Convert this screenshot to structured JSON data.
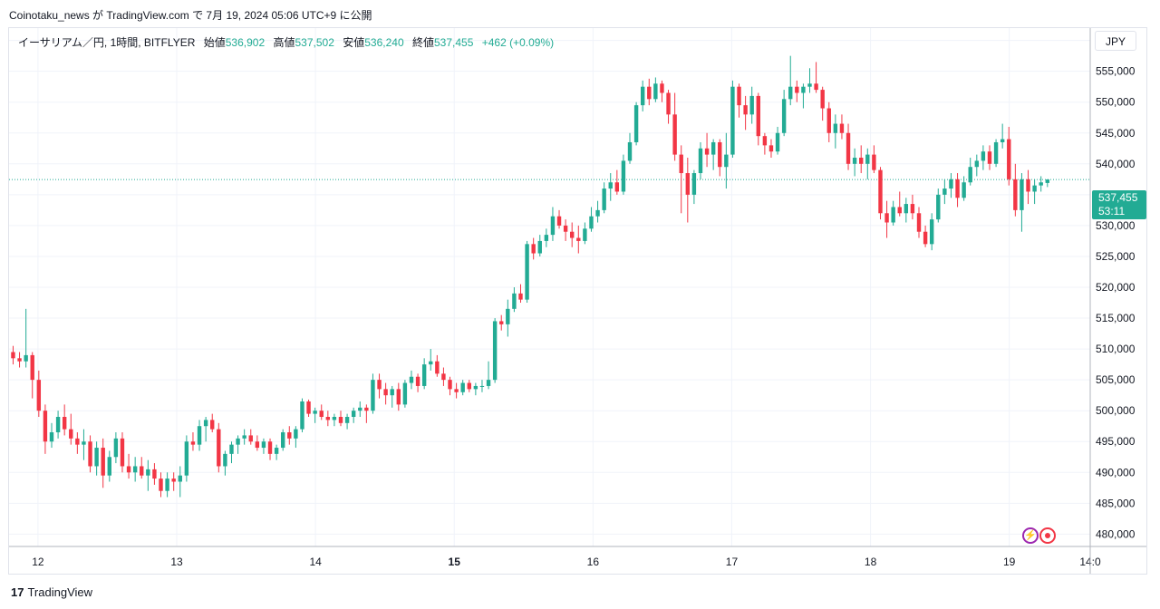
{
  "header": {
    "caption": "Coinotaku_news が TradingView.com で 7月 19, 2024 05:06 UTC+9 に公開"
  },
  "legend": {
    "symbol": "イーサリアム／円, 1時間, BITFLYER",
    "open_label": "始値",
    "open": "536,902",
    "high_label": "高値",
    "high": "537,502",
    "low_label": "安値",
    "low": "536,240",
    "close_label": "終値",
    "close": "537,455",
    "change": "+462 (+0.09%)"
  },
  "currency_button": "JPY",
  "last_price": {
    "price": "537,455",
    "countdown": "53:11"
  },
  "footer": {
    "brand": "TradingView",
    "logo_text": "17"
  },
  "colors": {
    "up": "#22ab94",
    "down": "#f23645",
    "grid": "#f0f3fa",
    "axis_text": "#131722",
    "last_price": "#22ab94"
  },
  "icons": [
    "bolt-icon",
    "record-icon",
    "tradingview-logo-icon"
  ],
  "chart_data": {
    "type": "candlestick",
    "title": "",
    "xlabel": "",
    "ylabel": "",
    "ylim": [
      478000,
      562000
    ],
    "y_ticks": [
      "560,000",
      "555,000",
      "550,000",
      "545,000",
      "540,000",
      "535,000",
      "530,000",
      "525,000",
      "520,000",
      "515,000",
      "510,000",
      "505,000",
      "500,000",
      "495,000",
      "490,000",
      "485,000",
      "480,000"
    ],
    "x_ticks": [
      {
        "label": "12",
        "hour": 0
      },
      {
        "label": "13",
        "hour": 24
      },
      {
        "label": "14",
        "hour": 48
      },
      {
        "label": "15",
        "hour": 72,
        "bold": true
      },
      {
        "label": "16",
        "hour": 96
      },
      {
        "label": "17",
        "hour": 120
      },
      {
        "label": "18",
        "hour": 144
      },
      {
        "label": "19",
        "hour": 168
      },
      {
        "label": "14:0",
        "hour": 182
      }
    ],
    "x_range_hours": [
      -5,
      182
    ],
    "last_price_line": 537455,
    "grid": true,
    "candles": [
      [
        509500,
        510500,
        507500,
        508500
      ],
      [
        508500,
        509500,
        507000,
        508000
      ],
      [
        508000,
        516500,
        507000,
        509000
      ],
      [
        509000,
        509500,
        502000,
        505000
      ],
      [
        505000,
        506500,
        499000,
        500000
      ],
      [
        500000,
        501000,
        493000,
        495000
      ],
      [
        495000,
        498000,
        494000,
        496500
      ],
      [
        496500,
        500000,
        495500,
        499000
      ],
      [
        499000,
        501000,
        496000,
        497000
      ],
      [
        497000,
        499500,
        494500,
        495500
      ],
      [
        495500,
        496500,
        493000,
        494500
      ],
      [
        494500,
        497000,
        492000,
        495000
      ],
      [
        495000,
        496000,
        490000,
        491000
      ],
      [
        491000,
        495000,
        489500,
        494000
      ],
      [
        494000,
        495500,
        487500,
        489500
      ],
      [
        489500,
        493500,
        488500,
        492500
      ],
      [
        492500,
        496500,
        491500,
        495500
      ],
      [
        495500,
        496500,
        490000,
        491000
      ],
      [
        491000,
        493000,
        489000,
        490000
      ],
      [
        490000,
        492500,
        488500,
        491000
      ],
      [
        491000,
        492500,
        489000,
        489500
      ],
      [
        489500,
        492000,
        487000,
        490500
      ],
      [
        490500,
        491500,
        488000,
        489000
      ],
      [
        489000,
        490000,
        486000,
        487000
      ],
      [
        487000,
        490000,
        486000,
        489000
      ],
      [
        489000,
        490000,
        487000,
        488500
      ],
      [
        488500,
        491000,
        486000,
        489500
      ],
      [
        489500,
        496000,
        488500,
        495000
      ],
      [
        495000,
        496500,
        493500,
        494500
      ],
      [
        494500,
        498500,
        493500,
        497500
      ],
      [
        497500,
        499000,
        495000,
        498500
      ],
      [
        498500,
        499500,
        496500,
        497000
      ],
      [
        497000,
        498000,
        490000,
        491000
      ],
      [
        491000,
        493500,
        489500,
        493000
      ],
      [
        493000,
        495000,
        491500,
        494500
      ],
      [
        494500,
        496000,
        493000,
        495500
      ],
      [
        495500,
        497000,
        494500,
        496000
      ],
      [
        496000,
        497000,
        494500,
        495000
      ],
      [
        495000,
        496000,
        493500,
        494000
      ],
      [
        494000,
        495500,
        493000,
        495000
      ],
      [
        495000,
        495500,
        492000,
        493000
      ],
      [
        493000,
        494500,
        492000,
        494000
      ],
      [
        494000,
        497000,
        493500,
        496500
      ],
      [
        496500,
        497500,
        494500,
        495500
      ],
      [
        495500,
        497500,
        494000,
        497000
      ],
      [
        497000,
        502000,
        496500,
        501500
      ],
      [
        501500,
        501800,
        499000,
        499500
      ],
      [
        499500,
        500500,
        498000,
        500000
      ],
      [
        500000,
        501000,
        498500,
        499000
      ],
      [
        499000,
        500000,
        497500,
        498500
      ],
      [
        498500,
        499500,
        497500,
        499000
      ],
      [
        499000,
        500000,
        497500,
        498000
      ],
      [
        498000,
        499500,
        497000,
        499000
      ],
      [
        499000,
        500500,
        498000,
        500000
      ],
      [
        500000,
        501500,
        499000,
        500500
      ],
      [
        500500,
        501000,
        498000,
        500000
      ],
      [
        500000,
        506000,
        499500,
        505000
      ],
      [
        505000,
        506000,
        502000,
        503500
      ],
      [
        503500,
        504500,
        501000,
        502500
      ],
      [
        502500,
        504000,
        500500,
        503500
      ],
      [
        503500,
        504500,
        500000,
        501000
      ],
      [
        501000,
        505000,
        500500,
        504500
      ],
      [
        504500,
        506500,
        503500,
        505500
      ],
      [
        505500,
        506000,
        503000,
        504000
      ],
      [
        504000,
        508500,
        503500,
        507500
      ],
      [
        507500,
        510000,
        506500,
        508000
      ],
      [
        508000,
        509000,
        505500,
        506000
      ],
      [
        506000,
        507000,
        504000,
        505000
      ],
      [
        505000,
        505500,
        502500,
        503500
      ],
      [
        503500,
        504500,
        502000,
        503000
      ],
      [
        503000,
        505000,
        502500,
        504500
      ],
      [
        504500,
        505000,
        503000,
        503500
      ],
      [
        503500,
        504500,
        502500,
        504000
      ],
      [
        504000,
        505000,
        503000,
        504000
      ],
      [
        504000,
        508000,
        503500,
        505000
      ],
      [
        505000,
        515000,
        504500,
        514500
      ],
      [
        514500,
        515500,
        513000,
        514000
      ],
      [
        514000,
        518000,
        512000,
        516500
      ],
      [
        516500,
        520000,
        516000,
        519000
      ],
      [
        519000,
        520500,
        517500,
        518000
      ],
      [
        518000,
        527500,
        517500,
        527000
      ],
      [
        527000,
        528000,
        524500,
        525500
      ],
      [
        525500,
        528500,
        525000,
        527500
      ],
      [
        527500,
        529500,
        526500,
        528500
      ],
      [
        528500,
        533000,
        527500,
        531500
      ],
      [
        531500,
        532500,
        529500,
        530000
      ],
      [
        530000,
        531000,
        527500,
        529000
      ],
      [
        529000,
        530500,
        526500,
        528000
      ],
      [
        528000,
        530000,
        525500,
        527500
      ],
      [
        527500,
        530500,
        527000,
        529500
      ],
      [
        529500,
        533000,
        529000,
        531500
      ],
      [
        531500,
        534000,
        530500,
        532500
      ],
      [
        532500,
        537000,
        532000,
        536000
      ],
      [
        536000,
        538500,
        534000,
        537000
      ],
      [
        537000,
        539000,
        535000,
        535500
      ],
      [
        535500,
        541500,
        535000,
        540500
      ],
      [
        540500,
        545000,
        540000,
        543500
      ],
      [
        543500,
        550000,
        543000,
        549500
      ],
      [
        549500,
        553500,
        548500,
        552500
      ],
      [
        552500,
        553800,
        549500,
        550500
      ],
      [
        550500,
        554000,
        550000,
        553000
      ],
      [
        553000,
        553500,
        550000,
        551500
      ],
      [
        551500,
        552000,
        546500,
        548000
      ],
      [
        548000,
        551500,
        540500,
        541500
      ],
      [
        541500,
        543000,
        532000,
        538500
      ],
      [
        538500,
        541000,
        530500,
        535000
      ],
      [
        535000,
        539000,
        533500,
        538500
      ],
      [
        538500,
        543500,
        537500,
        542500
      ],
      [
        542500,
        545000,
        539500,
        541500
      ],
      [
        541500,
        544000,
        539000,
        543500
      ],
      [
        543500,
        544000,
        538000,
        539500
      ],
      [
        539500,
        545000,
        536000,
        541500
      ],
      [
        541500,
        553500,
        541000,
        552500
      ],
      [
        552500,
        553000,
        547500,
        549500
      ],
      [
        549500,
        551000,
        545500,
        548000
      ],
      [
        548000,
        552500,
        546500,
        551000
      ],
      [
        551000,
        551500,
        543000,
        544500
      ],
      [
        544500,
        545000,
        541500,
        543000
      ],
      [
        543000,
        544000,
        541000,
        542000
      ],
      [
        542000,
        546000,
        541500,
        545000
      ],
      [
        545000,
        552000,
        544500,
        550500
      ],
      [
        550500,
        557500,
        549500,
        552500
      ],
      [
        552500,
        553500,
        550000,
        551500
      ],
      [
        551500,
        553000,
        549000,
        552500
      ],
      [
        552500,
        555500,
        551500,
        553000
      ],
      [
        553000,
        556500,
        551500,
        552000
      ],
      [
        552000,
        552500,
        547000,
        549000
      ],
      [
        549000,
        550000,
        543500,
        545000
      ],
      [
        545000,
        548000,
        542500,
        546500
      ],
      [
        546500,
        548000,
        544000,
        545000
      ],
      [
        545000,
        546500,
        539000,
        540000
      ],
      [
        540000,
        542500,
        538000,
        541000
      ],
      [
        541000,
        543000,
        538500,
        540000
      ],
      [
        540000,
        542500,
        537500,
        541500
      ],
      [
        541500,
        543000,
        538500,
        539000
      ],
      [
        539000,
        539500,
        531000,
        532000
      ],
      [
        532000,
        534000,
        528000,
        530500
      ],
      [
        530500,
        534000,
        530000,
        533000
      ],
      [
        533000,
        535500,
        531500,
        532000
      ],
      [
        532000,
        534500,
        530500,
        533500
      ],
      [
        533500,
        535000,
        531000,
        532000
      ],
      [
        532000,
        533000,
        528000,
        529000
      ],
      [
        529000,
        530000,
        526500,
        527000
      ],
      [
        527000,
        532000,
        526000,
        531000
      ],
      [
        531000,
        536000,
        530500,
        535000
      ],
      [
        535000,
        537500,
        533500,
        536000
      ],
      [
        536000,
        538500,
        534500,
        537500
      ],
      [
        537500,
        538500,
        533000,
        534500
      ],
      [
        534500,
        538000,
        534000,
        537000
      ],
      [
        537000,
        541000,
        536500,
        539500
      ],
      [
        539500,
        541500,
        538000,
        540500
      ],
      [
        540500,
        543000,
        539000,
        542000
      ],
      [
        542000,
        543000,
        539000,
        540000
      ],
      [
        540000,
        544000,
        539500,
        543500
      ],
      [
        543500,
        546500,
        542500,
        544000
      ],
      [
        544000,
        546000,
        536500,
        537500
      ],
      [
        537500,
        540000,
        531500,
        532500
      ],
      [
        532500,
        538500,
        529000,
        537500
      ],
      [
        537500,
        539000,
        533500,
        535500
      ],
      [
        535500,
        537500,
        533500,
        536500
      ],
      [
        536500,
        538000,
        535500,
        537000
      ],
      [
        536902,
        537502,
        536240,
        537455
      ]
    ]
  }
}
